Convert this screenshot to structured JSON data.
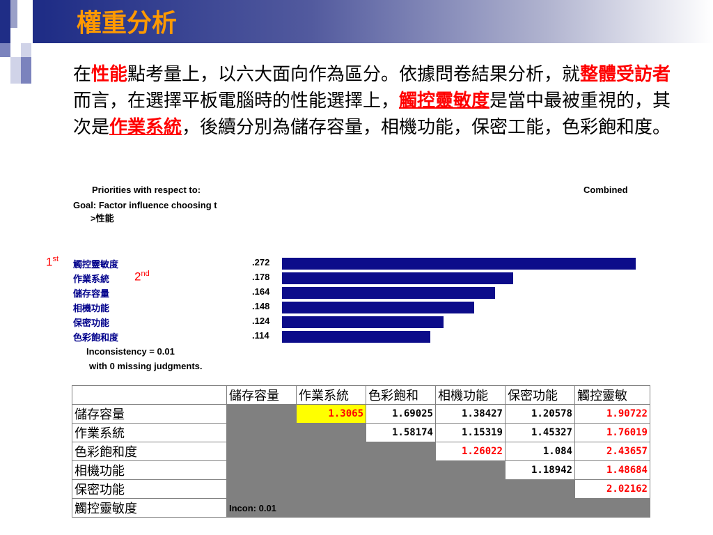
{
  "slide": {
    "title": "權重分析",
    "paragraph": [
      {
        "text": "在",
        "style": "normal"
      },
      {
        "text": "性能",
        "style": "hl"
      },
      {
        "text": "點考量上，以六大面向作為區分。依據問卷結果分析，就",
        "style": "normal"
      },
      {
        "text": "整體受訪者",
        "style": "hl"
      },
      {
        "text": "而言，在選擇平板電腦時的性能選擇上，",
        "style": "normal"
      },
      {
        "text": "觸控靈敏度",
        "style": "hl2"
      },
      {
        "text": "是當中最被重視的，其次是",
        "style": "normal"
      },
      {
        "text": "作業系統",
        "style": "hl2"
      },
      {
        "text": "，後續分別為儲存容量，相機功能，保密工能，色彩飽和度。",
        "style": "normal"
      }
    ]
  },
  "ahp": {
    "priorities_label": "Priorities with respect to:",
    "combined_label": "Combined",
    "goal_line": "Goal: Factor influence choosing t",
    "goal_sub": ">性能",
    "inconsistency": "Inconsistency = 0.01",
    "missing": "with 0  missing judgments.",
    "rank1": "1",
    "rank1_sup": "st",
    "rank2": "2",
    "rank2_sup": "nd"
  },
  "chart_data": {
    "type": "bar",
    "categories": [
      "觸控靈敏度",
      "作業系統",
      "儲存容量",
      "相機功能",
      "保密功能",
      "色彩飽和度"
    ],
    "values": [
      0.272,
      0.178,
      0.164,
      0.148,
      0.124,
      0.114
    ],
    "value_labels": [
      ".272",
      ".178",
      ".164",
      ".148",
      ".124",
      ".114"
    ],
    "orientation": "horizontal",
    "bar_color": "#0c0c8a",
    "xlim": [
      0,
      0.272
    ]
  },
  "matrix": {
    "columns": [
      "",
      "儲存容量",
      "作業系統",
      "色彩飽和",
      "相機功能",
      "保密功能",
      "觸控靈敏"
    ],
    "rows": [
      {
        "label": "儲存容量",
        "cells": [
          {
            "v": "",
            "c": "grey"
          },
          {
            "v": "1.3065",
            "c": "yellow red"
          },
          {
            "v": "1.69025",
            "c": "black"
          },
          {
            "v": "1.38427",
            "c": "black"
          },
          {
            "v": "1.20578",
            "c": "black"
          },
          {
            "v": "1.90722",
            "c": "red"
          }
        ]
      },
      {
        "label": "作業系統",
        "cells": [
          {
            "v": "",
            "c": "grey"
          },
          {
            "v": "",
            "c": "grey"
          },
          {
            "v": "1.58174",
            "c": "black"
          },
          {
            "v": "1.15319",
            "c": "black"
          },
          {
            "v": "1.45327",
            "c": "black"
          },
          {
            "v": "1.76019",
            "c": "red"
          }
        ]
      },
      {
        "label": "色彩飽和度",
        "cells": [
          {
            "v": "",
            "c": "grey"
          },
          {
            "v": "",
            "c": "grey"
          },
          {
            "v": "",
            "c": "grey"
          },
          {
            "v": "1.26022",
            "c": "red"
          },
          {
            "v": "1.084",
            "c": "black"
          },
          {
            "v": "2.43657",
            "c": "red"
          }
        ]
      },
      {
        "label": "相機功能",
        "cells": [
          {
            "v": "",
            "c": "grey"
          },
          {
            "v": "",
            "c": "grey"
          },
          {
            "v": "",
            "c": "grey"
          },
          {
            "v": "",
            "c": "grey"
          },
          {
            "v": "1.18942",
            "c": "black"
          },
          {
            "v": "1.48684",
            "c": "red"
          }
        ]
      },
      {
        "label": "保密功能",
        "cells": [
          {
            "v": "",
            "c": "grey"
          },
          {
            "v": "",
            "c": "grey"
          },
          {
            "v": "",
            "c": "grey"
          },
          {
            "v": "",
            "c": "grey"
          },
          {
            "v": "",
            "c": "grey"
          },
          {
            "v": "2.02162",
            "c": "red"
          }
        ]
      },
      {
        "label": "觸控靈敏度",
        "cells": [
          {
            "v": "Incon: 0.01",
            "c": "incon"
          },
          {
            "v": "",
            "c": "grey"
          },
          {
            "v": "",
            "c": "grey"
          },
          {
            "v": "",
            "c": "grey"
          },
          {
            "v": "",
            "c": "grey"
          },
          {
            "v": "",
            "c": "grey"
          }
        ]
      }
    ]
  },
  "colors": {
    "title": "#ff9900",
    "highlight": "#ff0000",
    "bar": "#0c0c8a",
    "header_dark": "#1f2d86"
  }
}
